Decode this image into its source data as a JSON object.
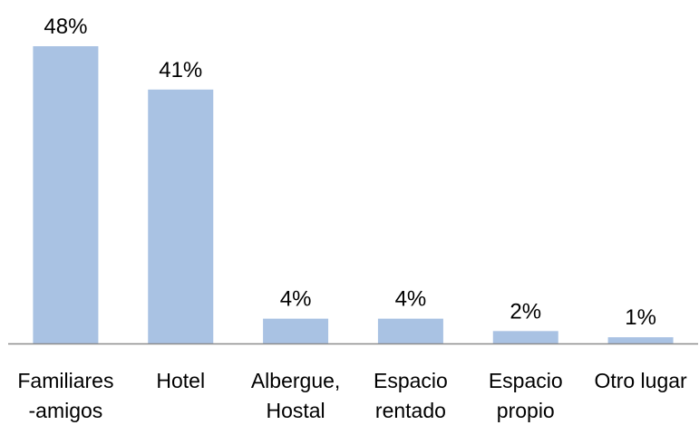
{
  "chart_data": {
    "type": "bar",
    "categories": [
      [
        "Familiares",
        "-amigos"
      ],
      [
        "Hotel"
      ],
      [
        "Albergue,",
        "Hostal"
      ],
      [
        "Espacio",
        "rentado"
      ],
      [
        "Espacio",
        "propio"
      ],
      [
        "Otro lugar"
      ]
    ],
    "values": [
      48,
      41,
      4,
      4,
      2,
      1
    ],
    "data_labels": [
      "48%",
      "41%",
      "4%",
      "4%",
      "2%",
      "1%"
    ],
    "title": "",
    "xlabel": "",
    "ylabel": "",
    "ylim": [
      0,
      48
    ],
    "grid": false,
    "legend": "none",
    "bar_color": "#a9c2e3",
    "axis_color": "#8c8c8c"
  }
}
